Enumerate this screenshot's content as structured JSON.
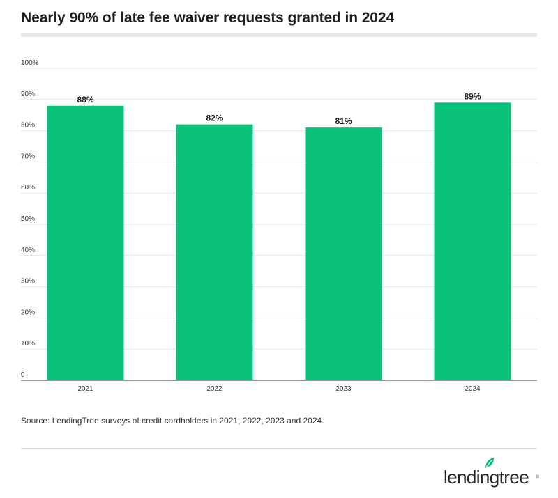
{
  "chart_data": {
    "type": "bar",
    "title": "Nearly 90% of late fee waiver requests granted in 2024",
    "categories": [
      "2021",
      "2022",
      "2023",
      "2024"
    ],
    "values": [
      88,
      82,
      81,
      89
    ],
    "value_labels": [
      "88%",
      "82%",
      "81%",
      "89%"
    ],
    "ylim": [
      0,
      100
    ],
    "yticks": [
      0,
      10,
      20,
      30,
      40,
      50,
      60,
      70,
      80,
      90,
      100
    ],
    "ytick_labels": [
      "0",
      "10%",
      "20%",
      "30%",
      "40%",
      "50%",
      "60%",
      "70%",
      "80%",
      "90%",
      "100%"
    ],
    "xlabel": "",
    "ylabel": "",
    "grid": true,
    "bar_color": "#0bc27a"
  },
  "source": "Source: LendingTree surveys of credit cardholders in 2021, 2022, 2023 and 2024.",
  "brand": {
    "name": "lendingtree",
    "mark": "®",
    "leaf_color": "#0bc27a"
  }
}
